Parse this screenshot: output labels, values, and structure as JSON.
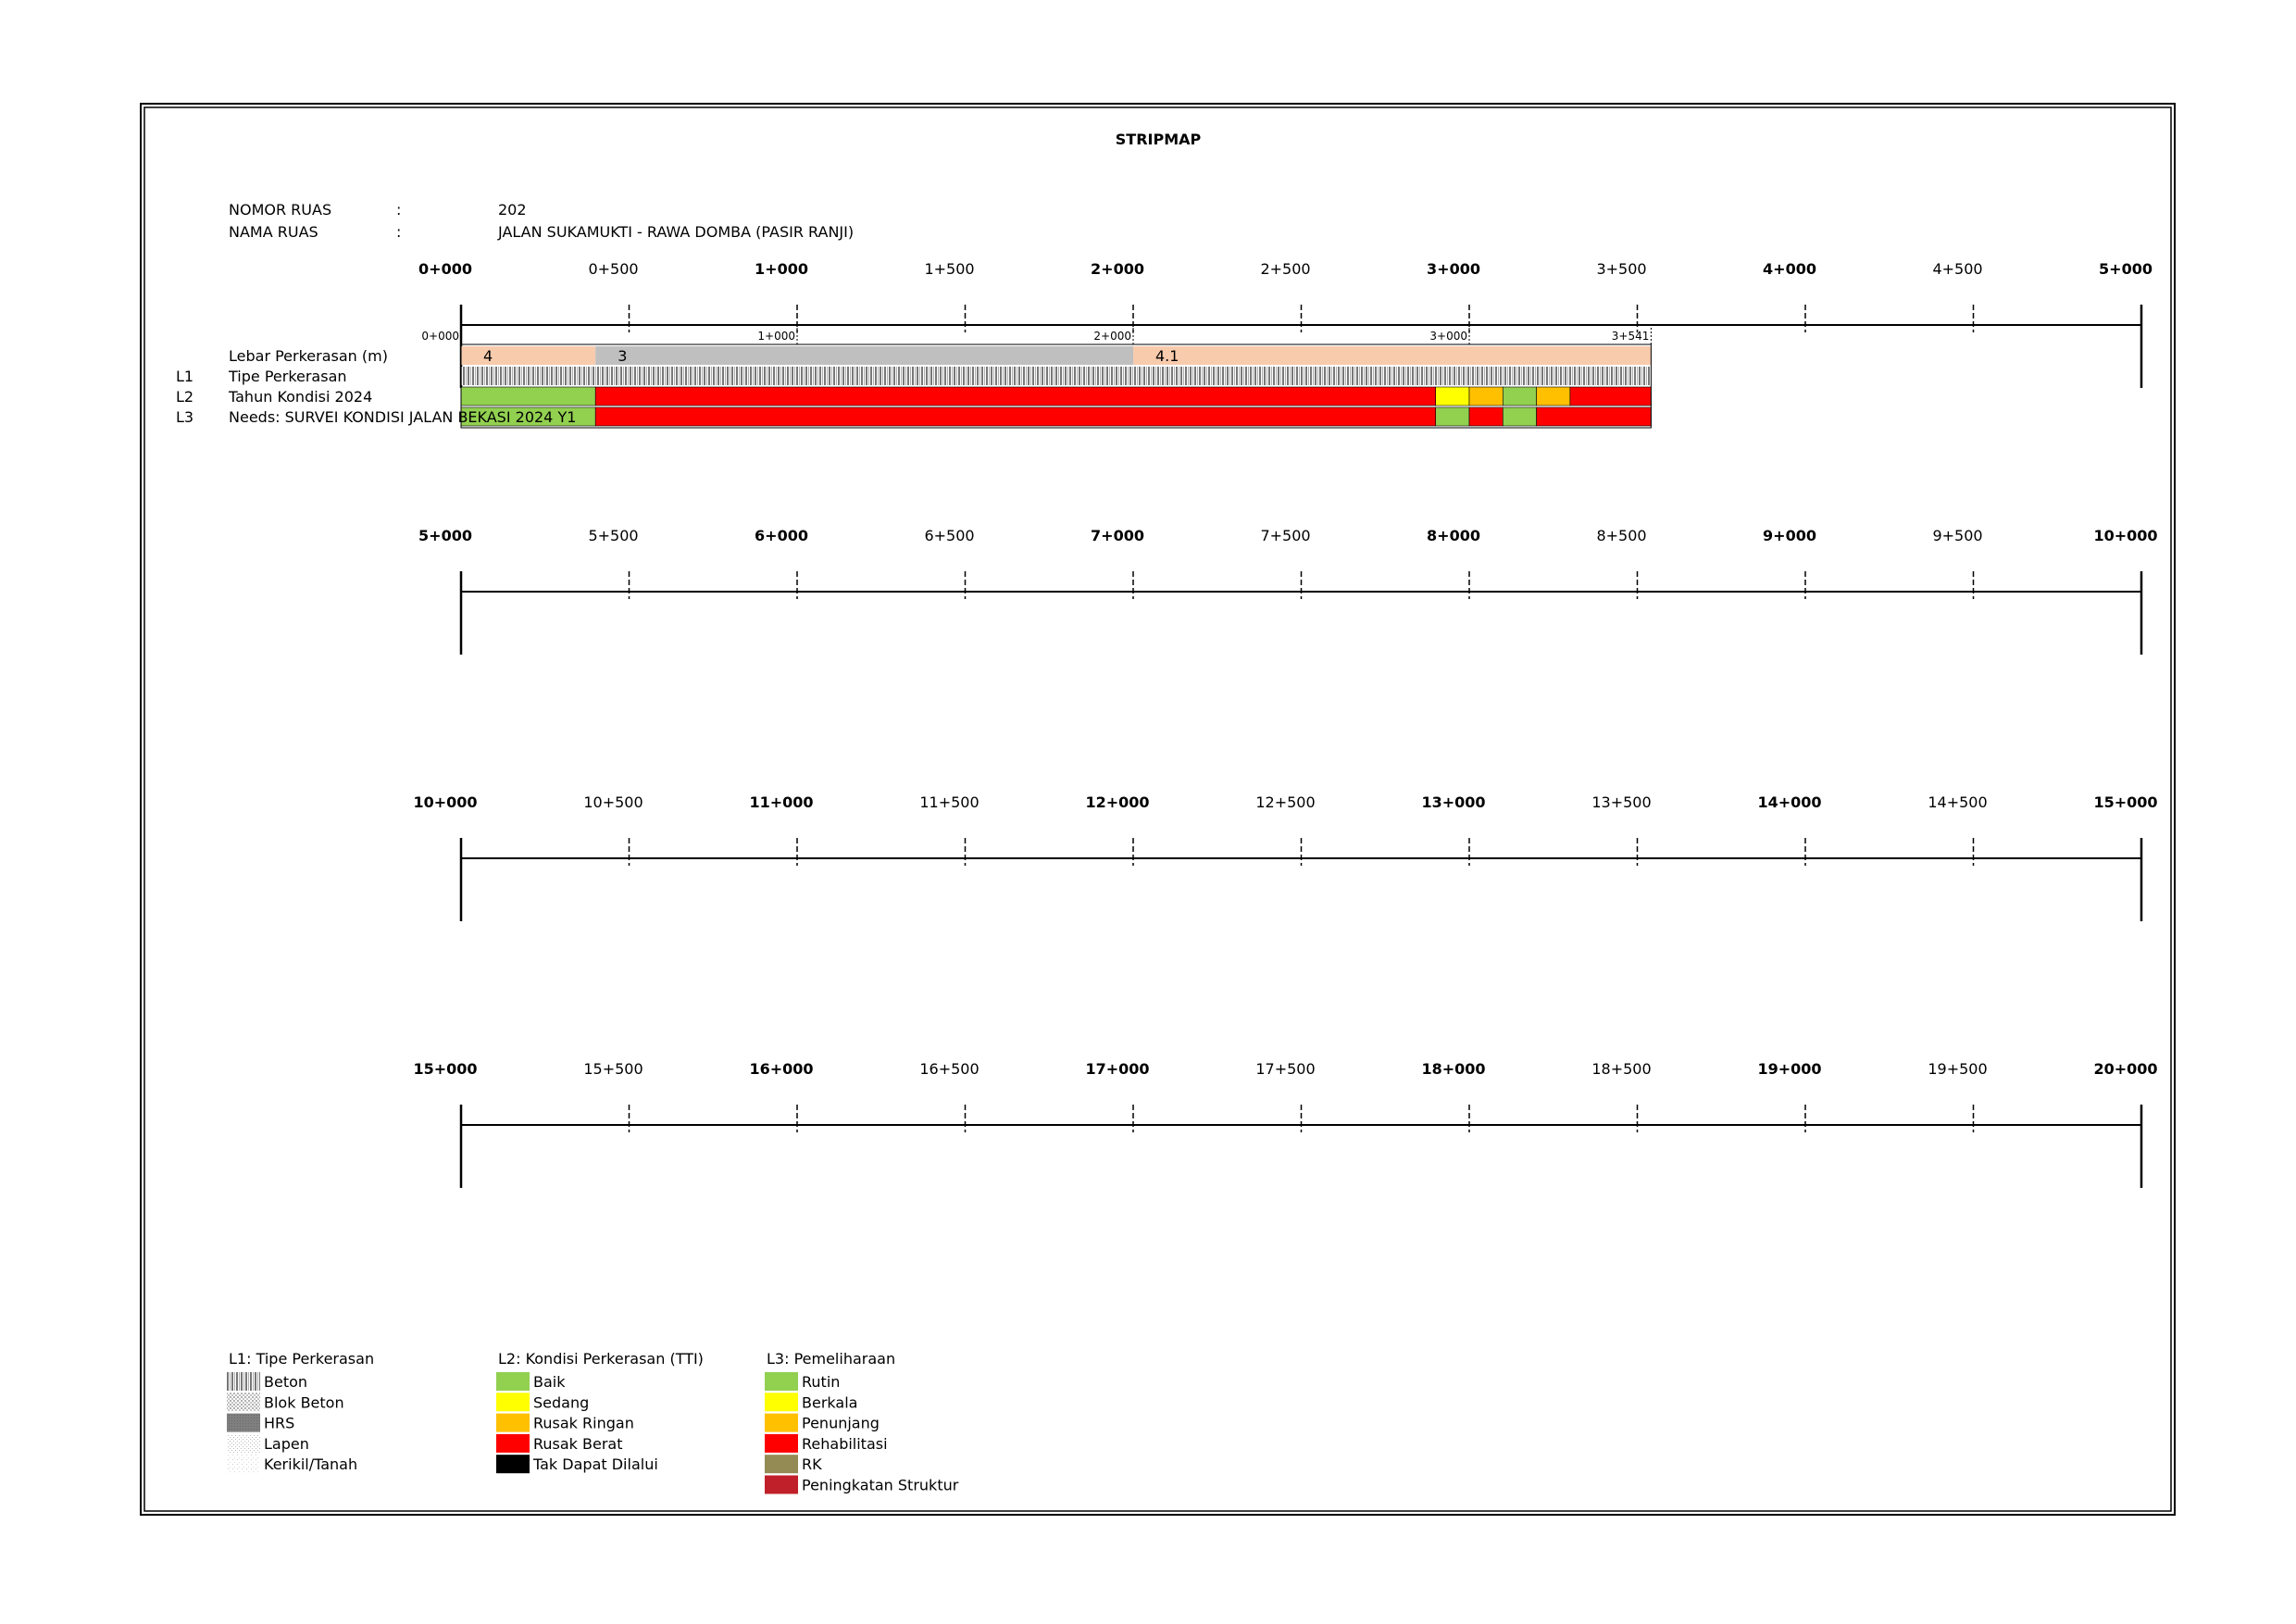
{
  "title": "STRIPMAP",
  "info": {
    "nomor_label": "NOMOR RUAS",
    "nomor_sep": ":",
    "nomor_value": "202",
    "nama_label": "NAMA RUAS",
    "nama_sep": ":",
    "nama_value": "JALAN SUKAMUKTI - RAWA DOMBA (PASIR RANJI)"
  },
  "layers": {
    "width_label": "Lebar Perkerasan (m)",
    "l1_code": "L1",
    "l1_label": "Tipe Perkerasan",
    "l2_code": "L2",
    "l2_label": "Tahun Kondisi 2024",
    "l3_code": "L3",
    "l3_label": "Needs: SURVEI KONDISI JALAN BEKASI 2024 Y1"
  },
  "colors": {
    "baik": "#92d050",
    "sedang": "#ffff00",
    "rusak_ringan": "#ffc000",
    "rusak_berat": "#ff0000",
    "tak_dapat": "#000000",
    "rk": "#948a54",
    "peningkatan": "#c0202a",
    "width_peach": "#f8cbad",
    "width_grey": "#bfbfbf"
  },
  "road": {
    "length_km": 3.541,
    "small_ticks": [
      "0+000",
      "1+000",
      "2+000",
      "3+000",
      "3+541"
    ],
    "small_tick_km": [
      0,
      1,
      2,
      3,
      3.541
    ],
    "width_segments": [
      {
        "from": 0,
        "to": 0.4,
        "value": "4",
        "color": "width_peach"
      },
      {
        "from": 0.4,
        "to": 2.0,
        "value": "3",
        "color": "width_grey"
      },
      {
        "from": 2.0,
        "to": 3.541,
        "value": "4.1",
        "color": "width_peach"
      }
    ],
    "l1_segments": [
      {
        "from": 0,
        "to": 3.541,
        "type": "Beton"
      }
    ],
    "l2_segments": [
      {
        "from": 0,
        "to": 0.4,
        "cond": "baik"
      },
      {
        "from": 0.4,
        "to": 2.9,
        "cond": "rusak_berat"
      },
      {
        "from": 2.9,
        "to": 3.0,
        "cond": "sedang"
      },
      {
        "from": 3.0,
        "to": 3.1,
        "cond": "rusak_ringan"
      },
      {
        "from": 3.1,
        "to": 3.2,
        "cond": "baik"
      },
      {
        "from": 3.2,
        "to": 3.3,
        "cond": "rusak_ringan"
      },
      {
        "from": 3.3,
        "to": 3.541,
        "cond": "rusak_berat"
      }
    ],
    "l3_segments": [
      {
        "from": 0,
        "to": 0.4,
        "cond": "baik"
      },
      {
        "from": 0.4,
        "to": 2.9,
        "cond": "rusak_berat"
      },
      {
        "from": 2.9,
        "to": 3.0,
        "cond": "baik"
      },
      {
        "from": 3.0,
        "to": 3.1,
        "cond": "rusak_berat"
      },
      {
        "from": 3.1,
        "to": 3.2,
        "cond": "baik"
      },
      {
        "from": 3.2,
        "to": 3.541,
        "cond": "rusak_berat"
      }
    ]
  },
  "rows": [
    {
      "labels": [
        "0+000",
        "0+500",
        "1+000",
        "1+500",
        "2+000",
        "2+500",
        "3+000",
        "3+500",
        "4+000",
        "4+500",
        "5+000"
      ]
    },
    {
      "labels": [
        "5+000",
        "5+500",
        "6+000",
        "6+500",
        "7+000",
        "7+500",
        "8+000",
        "8+500",
        "9+000",
        "9+500",
        "10+000"
      ]
    },
    {
      "labels": [
        "10+000",
        "10+500",
        "11+000",
        "11+500",
        "12+000",
        "12+500",
        "13+000",
        "13+500",
        "14+000",
        "14+500",
        "15+000"
      ]
    },
    {
      "labels": [
        "15+000",
        "15+500",
        "16+000",
        "16+500",
        "17+000",
        "17+500",
        "18+000",
        "18+500",
        "19+000",
        "19+500",
        "20+000"
      ]
    }
  ],
  "legend": {
    "l1_title": "L1: Tipe Perkerasan",
    "l1_items": [
      {
        "label": "Beton",
        "pattern": "beton"
      },
      {
        "label": "Blok Beton",
        "pattern": "blok"
      },
      {
        "label": "HRS",
        "pattern": "hrs"
      },
      {
        "label": "Lapen",
        "pattern": "lapen"
      },
      {
        "label": "Kerikil/Tanah",
        "pattern": "kerikil"
      }
    ],
    "l2_title": "L2: Kondisi Perkerasan (TTI)",
    "l2_items": [
      {
        "label": "Baik",
        "color": "#92d050"
      },
      {
        "label": "Sedang",
        "color": "#ffff00"
      },
      {
        "label": "Rusak Ringan",
        "color": "#ffc000"
      },
      {
        "label": "Rusak Berat",
        "color": "#ff0000"
      },
      {
        "label": "Tak Dapat Dilalui",
        "color": "#000000"
      }
    ],
    "l3_title": "L3: Pemeliharaan",
    "l3_items": [
      {
        "label": "Rutin",
        "color": "#92d050"
      },
      {
        "label": "Berkala",
        "color": "#ffff00"
      },
      {
        "label": "Penunjang",
        "color": "#ffc000"
      },
      {
        "label": "Rehabilitasi",
        "color": "#ff0000"
      },
      {
        "label": "RK",
        "color": "#948a54"
      },
      {
        "label": "Peningkatan Struktur",
        "color": "#c0202a"
      }
    ]
  }
}
